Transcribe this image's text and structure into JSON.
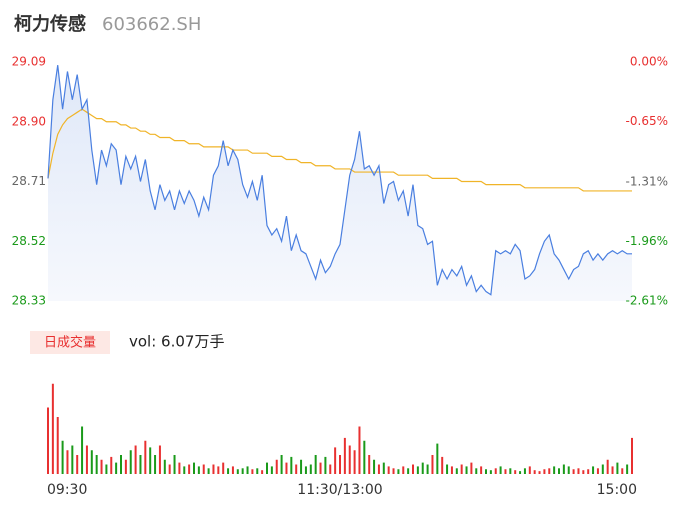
{
  "header": {
    "title": "柯力传感",
    "code": "603662.SH"
  },
  "chart_data": [
    {
      "type": "line",
      "xlim": [
        0,
        240
      ],
      "xticks": [
        {
          "value": 0,
          "label": "09:30"
        },
        {
          "value": 120,
          "label": "11:30/13:00"
        },
        {
          "value": 240,
          "label": "15:00"
        }
      ],
      "ylim": [
        28.33,
        29.09
      ],
      "yticks": [
        29.09,
        {
          "value": 28.9,
          "label": "28.90"
        },
        28.71,
        28.52,
        28.33
      ],
      "ytick_colors": [
        "#e83030",
        "#e83030",
        "#666666",
        "#1a9a1a",
        "#1a9a1a"
      ],
      "y2lim": [
        -2.61,
        0
      ],
      "y2ticks": [
        {
          "value": 0,
          "label": "0.00%"
        },
        {
          "value": -0.65,
          "label": "-0.65%"
        },
        {
          "value": -1.31,
          "label": "-1.31%"
        },
        {
          "value": -1.96,
          "label": "-1.96%"
        },
        {
          "value": -2.61,
          "label": "-2.61%"
        }
      ],
      "y2tick_colors": [
        "#e83030",
        "#e83030",
        "#666666",
        "#1a9a1a",
        "#1a9a1a"
      ],
      "x": [
        0,
        2,
        4,
        6,
        8,
        10,
        12,
        14,
        16,
        18,
        20,
        22,
        24,
        26,
        28,
        30,
        32,
        34,
        36,
        38,
        40,
        42,
        44,
        46,
        48,
        50,
        52,
        54,
        56,
        58,
        60,
        62,
        64,
        66,
        68,
        70,
        72,
        74,
        76,
        78,
        80,
        82,
        84,
        86,
        88,
        90,
        92,
        94,
        96,
        98,
        100,
        102,
        104,
        106,
        108,
        110,
        112,
        114,
        116,
        118,
        120,
        122,
        124,
        126,
        128,
        130,
        132,
        134,
        136,
        138,
        140,
        142,
        144,
        146,
        148,
        150,
        152,
        154,
        156,
        158,
        160,
        162,
        164,
        166,
        168,
        170,
        172,
        174,
        176,
        178,
        180,
        182,
        184,
        186,
        188,
        190,
        192,
        194,
        196,
        198,
        200,
        202,
        204,
        206,
        208,
        210,
        212,
        214,
        216,
        218,
        220,
        222,
        224,
        226,
        228,
        230,
        232,
        234,
        236,
        238,
        240
      ],
      "series": [
        {
          "color": "#4a7fe0",
          "values": [
            28.72,
            28.97,
            29.08,
            28.94,
            29.06,
            28.97,
            29.05,
            28.94,
            28.97,
            28.81,
            28.7,
            28.81,
            28.76,
            28.83,
            28.81,
            28.7,
            28.79,
            28.75,
            28.79,
            28.71,
            28.78,
            28.68,
            28.62,
            28.7,
            28.65,
            28.68,
            28.62,
            28.68,
            28.64,
            28.68,
            28.65,
            28.6,
            28.66,
            28.62,
            28.73,
            28.76,
            28.84,
            28.76,
            28.81,
            28.78,
            28.7,
            28.66,
            28.71,
            28.65,
            28.73,
            28.57,
            28.54,
            28.56,
            28.52,
            28.6,
            28.49,
            28.54,
            28.49,
            28.48,
            28.44,
            28.4,
            28.46,
            28.42,
            28.44,
            28.48,
            28.51,
            28.62,
            28.73,
            28.78,
            28.87,
            28.75,
            28.76,
            28.73,
            28.76,
            28.64,
            28.7,
            28.71,
            28.65,
            28.68,
            28.6,
            28.7,
            28.57,
            28.56,
            28.51,
            28.52,
            28.38,
            28.43,
            28.4,
            28.43,
            28.41,
            28.44,
            28.38,
            28.41,
            28.36,
            28.38,
            28.36,
            28.35,
            28.49,
            28.48,
            28.49,
            28.48,
            28.51,
            28.49,
            28.4,
            28.41,
            28.43,
            28.48,
            28.52,
            28.54,
            28.48,
            28.46,
            28.43,
            28.4,
            28.43,
            28.44,
            28.48,
            28.49,
            28.46,
            28.48,
            28.46,
            28.48,
            28.49,
            28.48,
            28.49,
            28.48,
            28.48
          ]
        },
        {
          "color": "#f0b428",
          "values": [
            28.72,
            28.8,
            28.86,
            28.89,
            28.91,
            28.92,
            28.93,
            28.94,
            28.93,
            28.92,
            28.91,
            28.91,
            28.9,
            28.9,
            28.9,
            28.89,
            28.89,
            28.88,
            28.88,
            28.87,
            28.87,
            28.86,
            28.86,
            28.85,
            28.85,
            28.85,
            28.84,
            28.84,
            28.84,
            28.83,
            28.83,
            28.83,
            28.82,
            28.82,
            28.82,
            28.82,
            28.82,
            28.82,
            28.81,
            28.81,
            28.81,
            28.81,
            28.8,
            28.8,
            28.8,
            28.8,
            28.79,
            28.79,
            28.79,
            28.78,
            28.78,
            28.78,
            28.77,
            28.77,
            28.77,
            28.76,
            28.76,
            28.76,
            28.76,
            28.75,
            28.75,
            28.75,
            28.75,
            28.74,
            28.74,
            28.74,
            28.74,
            28.74,
            28.74,
            28.74,
            28.74,
            28.74,
            28.73,
            28.73,
            28.73,
            28.73,
            28.73,
            28.73,
            28.73,
            28.72,
            28.72,
            28.72,
            28.72,
            28.72,
            28.72,
            28.71,
            28.71,
            28.71,
            28.71,
            28.71,
            28.7,
            28.7,
            28.7,
            28.7,
            28.7,
            28.7,
            28.7,
            28.7,
            28.69,
            28.69,
            28.69,
            28.69,
            28.69,
            28.69,
            28.69,
            28.69,
            28.69,
            28.69,
            28.69,
            28.69,
            28.68,
            28.68,
            28.68,
            28.68,
            28.68,
            28.68,
            28.68,
            28.68,
            28.68,
            28.68,
            28.68
          ]
        }
      ]
    },
    {
      "type": "bar",
      "label": "日成交量",
      "summary": "vol: 6.07万手",
      "ylim": [
        0,
        100
      ],
      "up_color": "#e83030",
      "down_color": "#1a9a1a",
      "values": [
        70,
        95,
        60,
        35,
        25,
        30,
        20,
        50,
        30,
        25,
        20,
        15,
        10,
        18,
        12,
        20,
        15,
        25,
        30,
        20,
        35,
        28,
        20,
        30,
        15,
        10,
        20,
        12,
        8,
        10,
        12,
        8,
        10,
        6,
        10,
        8,
        12,
        6,
        8,
        5,
        6,
        8,
        5,
        6,
        4,
        12,
        8,
        15,
        20,
        12,
        18,
        10,
        15,
        8,
        10,
        20,
        12,
        18,
        10,
        28,
        20,
        38,
        30,
        25,
        50,
        35,
        20,
        15,
        10,
        12,
        8,
        6,
        5,
        8,
        6,
        10,
        8,
        12,
        10,
        20,
        32,
        18,
        10,
        8,
        6,
        10,
        8,
        12,
        6,
        8,
        5,
        4,
        6,
        8,
        5,
        6,
        4,
        3,
        6,
        8,
        4,
        3,
        5,
        6,
        8,
        6,
        10,
        8,
        5,
        6,
        4,
        5,
        8,
        6,
        10,
        15,
        8,
        12,
        6,
        10,
        38
      ]
    }
  ]
}
